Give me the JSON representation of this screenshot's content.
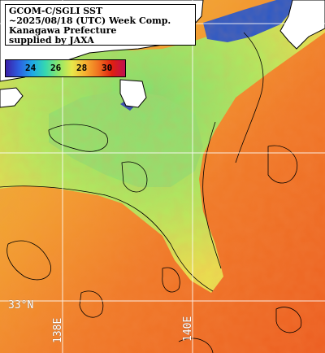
{
  "title": {
    "line1": "GCOM-C/SGLI SST",
    "line2": "~2025/08/18 (UTC) Week Comp.",
    "line3": "Kanagawa Prefecture",
    "line4": "supplied by JAXA"
  },
  "colorbar": {
    "ticks": [
      "24",
      "26",
      "28",
      "30"
    ],
    "colors": [
      "#3a1fa8",
      "#2d5fe0",
      "#1ea8e6",
      "#35d8b0",
      "#8ee86a",
      "#e8e84a",
      "#f6b030",
      "#f07020",
      "#e02010",
      "#c01050"
    ]
  },
  "grid_labels": {
    "lat": "33°N",
    "lon_left": "138E",
    "lon_right": "140E"
  },
  "colors": {
    "land": "#ffffff",
    "cold_water": "#2050c8",
    "mid_water": "#9ae86a",
    "warm_water": "#f08030",
    "contour": "#000000",
    "grid": "#ffffff"
  }
}
